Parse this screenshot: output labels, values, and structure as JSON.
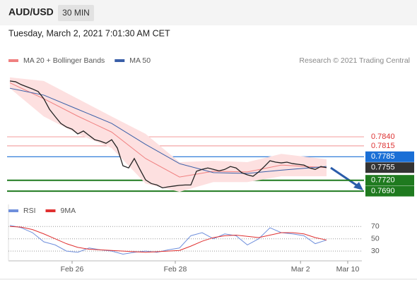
{
  "header": {
    "symbol": "AUD/USD",
    "timeframe": "30 MIN",
    "datetime": "Tuesday, March 2, 2021 7:01:30 AM CET",
    "copyright": "Research © 2021 Trading Central"
  },
  "chart_data": [
    {
      "type": "line",
      "xlim": [
        -0.25,
        62.25
      ],
      "ylim": [
        0.7663,
        0.8023
      ],
      "series": [
        {
          "name": "MA 20 + Bollinger Bands",
          "color": "#f08080",
          "band_color": "#fde0e0",
          "x": [
            0,
            6,
            12,
            18,
            24,
            30,
            36,
            42,
            48,
            56
          ],
          "values": [
            0.7989,
            0.7945,
            0.7897,
            0.7853,
            0.778,
            0.7729,
            0.7745,
            0.7743,
            0.7762,
            0.7755
          ],
          "upper": [
            0.8004,
            0.7994,
            0.7945,
            0.7896,
            0.7848,
            0.777,
            0.7774,
            0.777,
            0.7793,
            0.7778
          ],
          "lower": [
            0.7974,
            0.7896,
            0.7848,
            0.7809,
            0.7711,
            0.7688,
            0.7715,
            0.7715,
            0.7731,
            0.7731
          ]
        },
        {
          "name": "MA 50",
          "color": "#3a5fa8",
          "x": [
            0,
            6,
            12,
            18,
            24,
            30,
            36,
            42,
            48,
            56
          ],
          "values": [
            0.7974,
            0.7955,
            0.7916,
            0.7877,
            0.7819,
            0.7766,
            0.7741,
            0.7739,
            0.7748,
            0.7758
          ]
        },
        {
          "color": "#222",
          "x": [
            0,
            1,
            2,
            3,
            4,
            5,
            6,
            7,
            8,
            9,
            10,
            11,
            12,
            13,
            14,
            15,
            16,
            17,
            18,
            19,
            20,
            21,
            22,
            23,
            24,
            25,
            26,
            27,
            28,
            29,
            30,
            31,
            32,
            33,
            34,
            35,
            36,
            37,
            38,
            39,
            40,
            41,
            42,
            43,
            44,
            45,
            46,
            47,
            48,
            49,
            50,
            51,
            52,
            53,
            54,
            55,
            56
          ],
          "values": [
            0.7994,
            0.7992,
            0.7984,
            0.7978,
            0.7972,
            0.7965,
            0.7945,
            0.7916,
            0.7896,
            0.7877,
            0.7867,
            0.7861,
            0.7848,
            0.7856,
            0.7844,
            0.7832,
            0.7828,
            0.7822,
            0.7832,
            0.7809,
            0.776,
            0.7754,
            0.778,
            0.775,
            0.7721,
            0.7711,
            0.7707,
            0.7699,
            0.7702,
            0.7704,
            0.7706,
            0.7707,
            0.7707,
            0.7745,
            0.775,
            0.7754,
            0.775,
            0.7746,
            0.775,
            0.7758,
            0.7754,
            0.7741,
            0.7735,
            0.7731,
            0.7743,
            0.7758,
            0.7774,
            0.777,
            0.7768,
            0.777,
            0.7766,
            0.7764,
            0.7762,
            0.7754,
            0.775,
            0.7758,
            0.7755
          ]
        }
      ],
      "levels": [
        {
          "value": 0.784,
          "label": "0.7840",
          "color": "#f4a6a6",
          "text_color": "#d33",
          "box": false,
          "line": true
        },
        {
          "value": 0.7815,
          "label": "0.7815",
          "color": "#f4a6a6",
          "text_color": "#d33",
          "box": false,
          "line": true
        },
        {
          "value": 0.7785,
          "label": "0.7785",
          "color": "#1a6fd6",
          "text_color": "#fff",
          "box": true,
          "line": true
        },
        {
          "value": 0.7755,
          "label": "0.7755",
          "color": "#333333",
          "text_color": "#fff",
          "box": true,
          "line": false
        },
        {
          "value": 0.772,
          "label": "0.7720",
          "color": "#1f7a1f",
          "text_color": "#fff",
          "box": true,
          "line": true
        },
        {
          "value": 0.769,
          "label": "0.7690",
          "color": "#1f7a1f",
          "text_color": "#fff",
          "box": true,
          "line": true
        }
      ]
    },
    {
      "type": "line",
      "xlim": [
        -0.25,
        62.25
      ],
      "ylim": [
        14,
        83
      ],
      "yticks": [
        30,
        50,
        70
      ],
      "xticks": [
        {
          "value": 11,
          "label": "Feb 26"
        },
        {
          "value": 29.25,
          "label": "Feb 28"
        },
        {
          "value": 51.4,
          "label": "Mar 2"
        },
        {
          "value": 59.75,
          "label": "Mar 10"
        }
      ],
      "series": [
        {
          "name": "RSI",
          "color": "#6f8fdc",
          "x": [
            0,
            2,
            4,
            6,
            8,
            10,
            12,
            14,
            16,
            18,
            20,
            22,
            24,
            26,
            28,
            30,
            32,
            34,
            36,
            38,
            40,
            42,
            44,
            46,
            48,
            50,
            52,
            54,
            56
          ],
          "values": [
            72,
            68,
            60,
            45,
            40,
            30,
            28,
            35,
            32,
            30,
            25,
            28,
            30,
            28,
            32,
            35,
            55,
            60,
            50,
            58,
            55,
            40,
            50,
            68,
            60,
            58,
            55,
            42,
            48
          ]
        },
        {
          "name": "9MA",
          "color": "#e03030",
          "x": [
            0,
            2,
            4,
            6,
            8,
            10,
            12,
            14,
            16,
            18,
            20,
            22,
            24,
            26,
            28,
            30,
            32,
            34,
            36,
            38,
            40,
            42,
            44,
            46,
            48,
            50,
            52,
            54,
            56
          ],
          "values": [
            70,
            69,
            65,
            58,
            50,
            42,
            36,
            33,
            32,
            31,
            30,
            29,
            28,
            29,
            30,
            31,
            38,
            46,
            52,
            55,
            56,
            54,
            52,
            56,
            60,
            60,
            58,
            52,
            48
          ]
        }
      ]
    }
  ]
}
